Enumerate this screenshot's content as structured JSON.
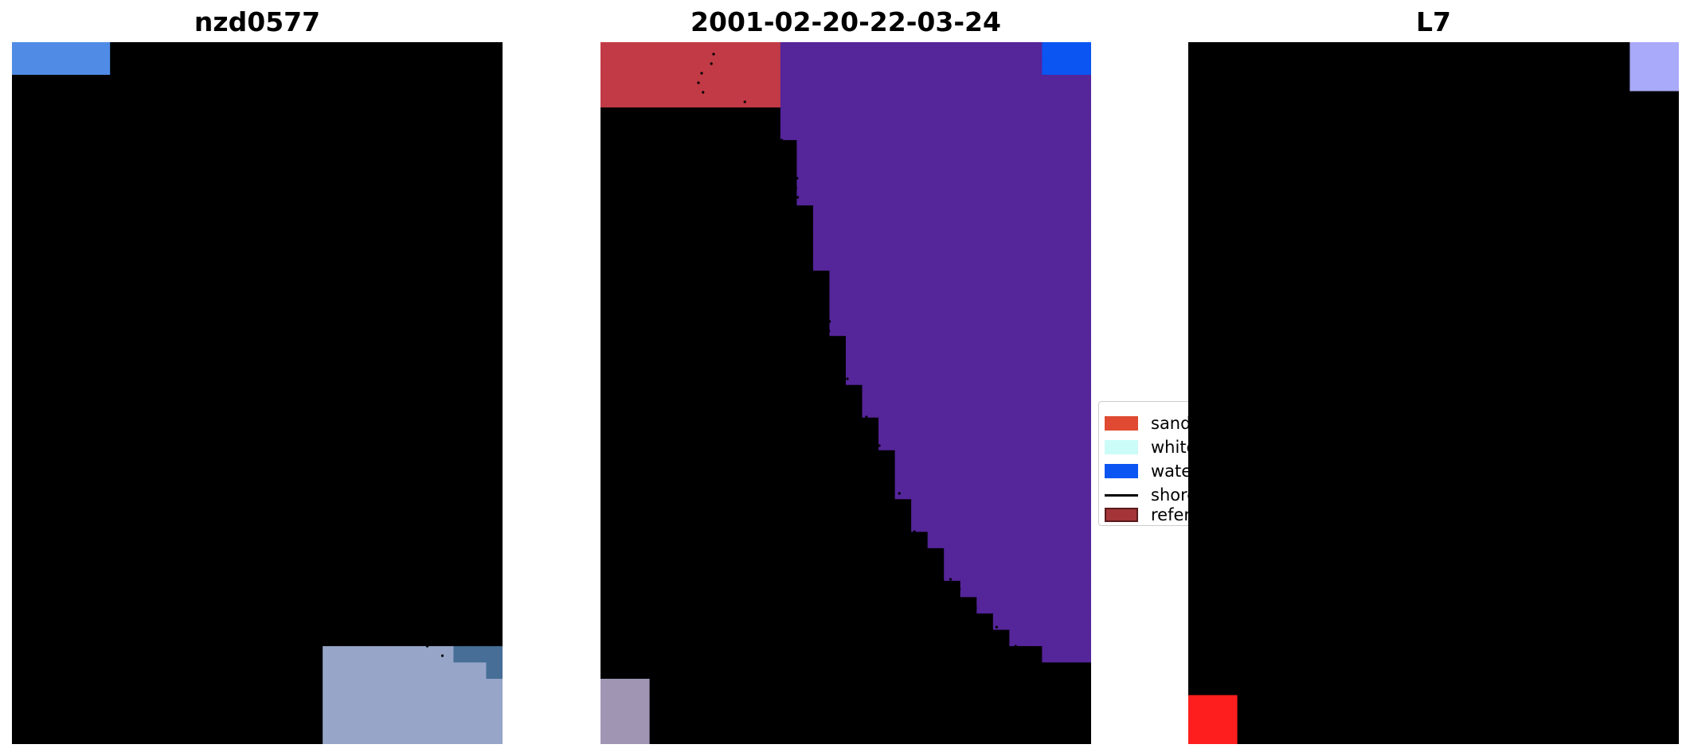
{
  "panels": [
    {
      "title": "nzd0577"
    },
    {
      "title": "2001-02-20-22-03-24"
    },
    {
      "title": "L7"
    }
  ],
  "legend": {
    "items": [
      {
        "label": "sand",
        "color": "#e04a32",
        "kind": "patch"
      },
      {
        "label": "white-water",
        "color": "#ccfcf8",
        "kind": "patch"
      },
      {
        "label": "water",
        "color": "#0b55f2",
        "kind": "patch"
      },
      {
        "label": "shoreline",
        "color": "#000000",
        "kind": "line"
      },
      {
        "label": "reference shoreline",
        "color": "#a33438",
        "kind": "patch-outlined"
      }
    ]
  },
  "colors": {
    "land_rgb": "#8e9cc6",
    "ocean_rgb": "#1f5b96",
    "beach_rgb": "#f3f2dc",
    "class_land": "#8b3c78",
    "class_water": "#55259a",
    "class_sand": "#c13a45",
    "ndwi_land": "#c4154a",
    "ndwi_water": "#9c4aa6"
  }
}
